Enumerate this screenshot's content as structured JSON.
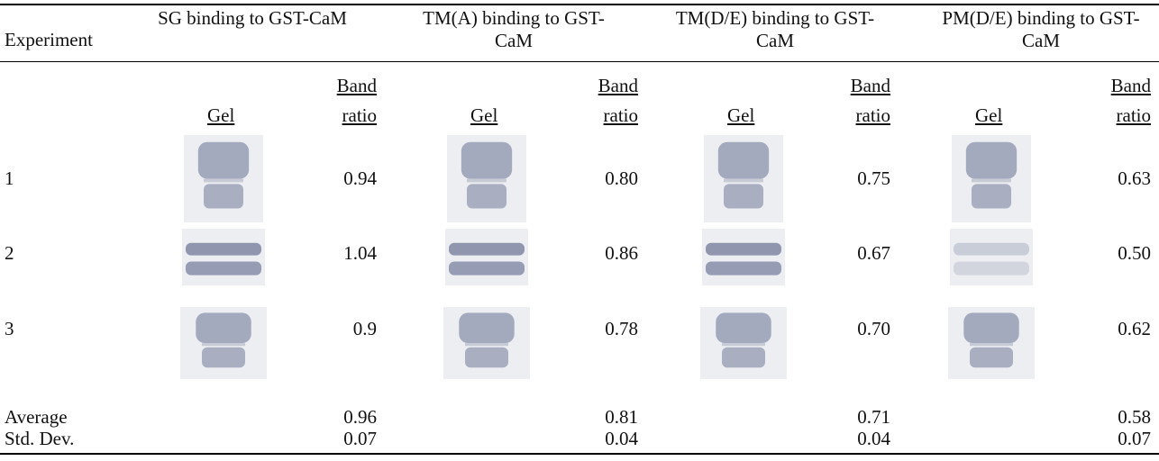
{
  "table": {
    "header": {
      "first": "Experiment",
      "groups": [
        "SG binding to GST-CaM",
        "TM(A) binding to GST-CaM",
        "TM(D/E) binding to GST-CaM",
        "PM(D/E) binding to GST-CaM"
      ]
    },
    "subheaders": [
      "Gel",
      "Band ratio"
    ],
    "rows": [
      [
        "1",
        "0.94",
        "0.80",
        "0.75",
        "0.63"
      ],
      [
        "2",
        "1.04",
        "0.86",
        "0.67",
        "0.50"
      ],
      [
        "3",
        "0.9",
        "0.78",
        "0.70",
        "0.62"
      ]
    ],
    "summary": [
      [
        "Average",
        "0.96",
        "0.81",
        "0.71",
        "0.58"
      ],
      [
        "Std. Dev.",
        "0.07",
        "0.04",
        "0.04",
        "0.07"
      ]
    ]
  }
}
